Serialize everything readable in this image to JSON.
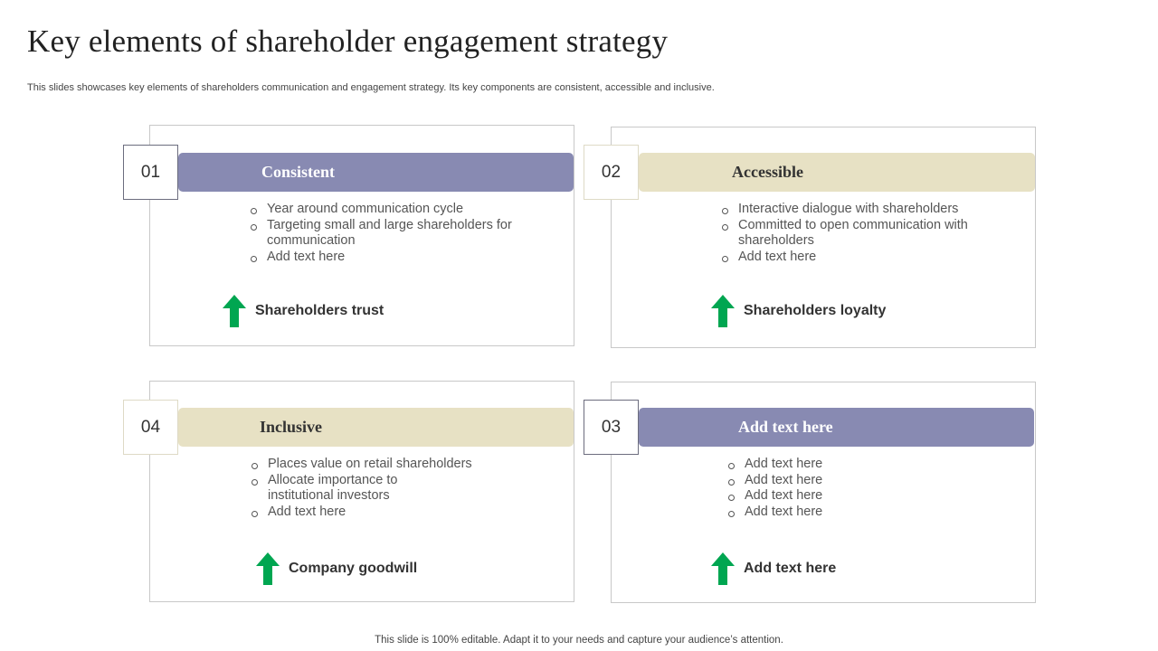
{
  "title": "Key elements of  shareholder engagement strategy",
  "subtitle": "This slides showcases key elements of shareholders communication and engagement strategy. Its key components are consistent, accessible and inclusive.",
  "footer": "This slide is 100% editable. Adapt it to your needs and capture your audience’s attention.",
  "colors": {
    "purple": "#888ab2",
    "beige": "#e7e1c4",
    "arrow_green": "#00a651"
  },
  "cards": [
    {
      "number": "01",
      "heading": "Consistent",
      "bullets": [
        "Year around communication cycle",
        "Targeting small and large shareholders for communication",
        "Add text here"
      ],
      "outcome": "Shareholders trust",
      "outcome_icon": "up-arrow-icon"
    },
    {
      "number": "02",
      "heading": "Accessible",
      "bullets": [
        "Interactive dialogue with shareholders",
        "Committed to open communication with shareholders",
        "Add text here"
      ],
      "outcome": "Shareholders loyalty",
      "outcome_icon": "up-arrow-icon"
    },
    {
      "number": "04",
      "heading": "Inclusive",
      "bullets": [
        "Places value on retail shareholders",
        "Allocate importance to institutional investors",
        "Add text here"
      ],
      "outcome": "Company goodwill",
      "outcome_icon": "up-arrow-icon"
    },
    {
      "number": "03",
      "heading": "Add text here",
      "bullets": [
        "Add text here",
        "Add text here",
        "Add text here",
        "Add text here"
      ],
      "outcome": "Add text here",
      "outcome_icon": "up-arrow-icon"
    }
  ]
}
